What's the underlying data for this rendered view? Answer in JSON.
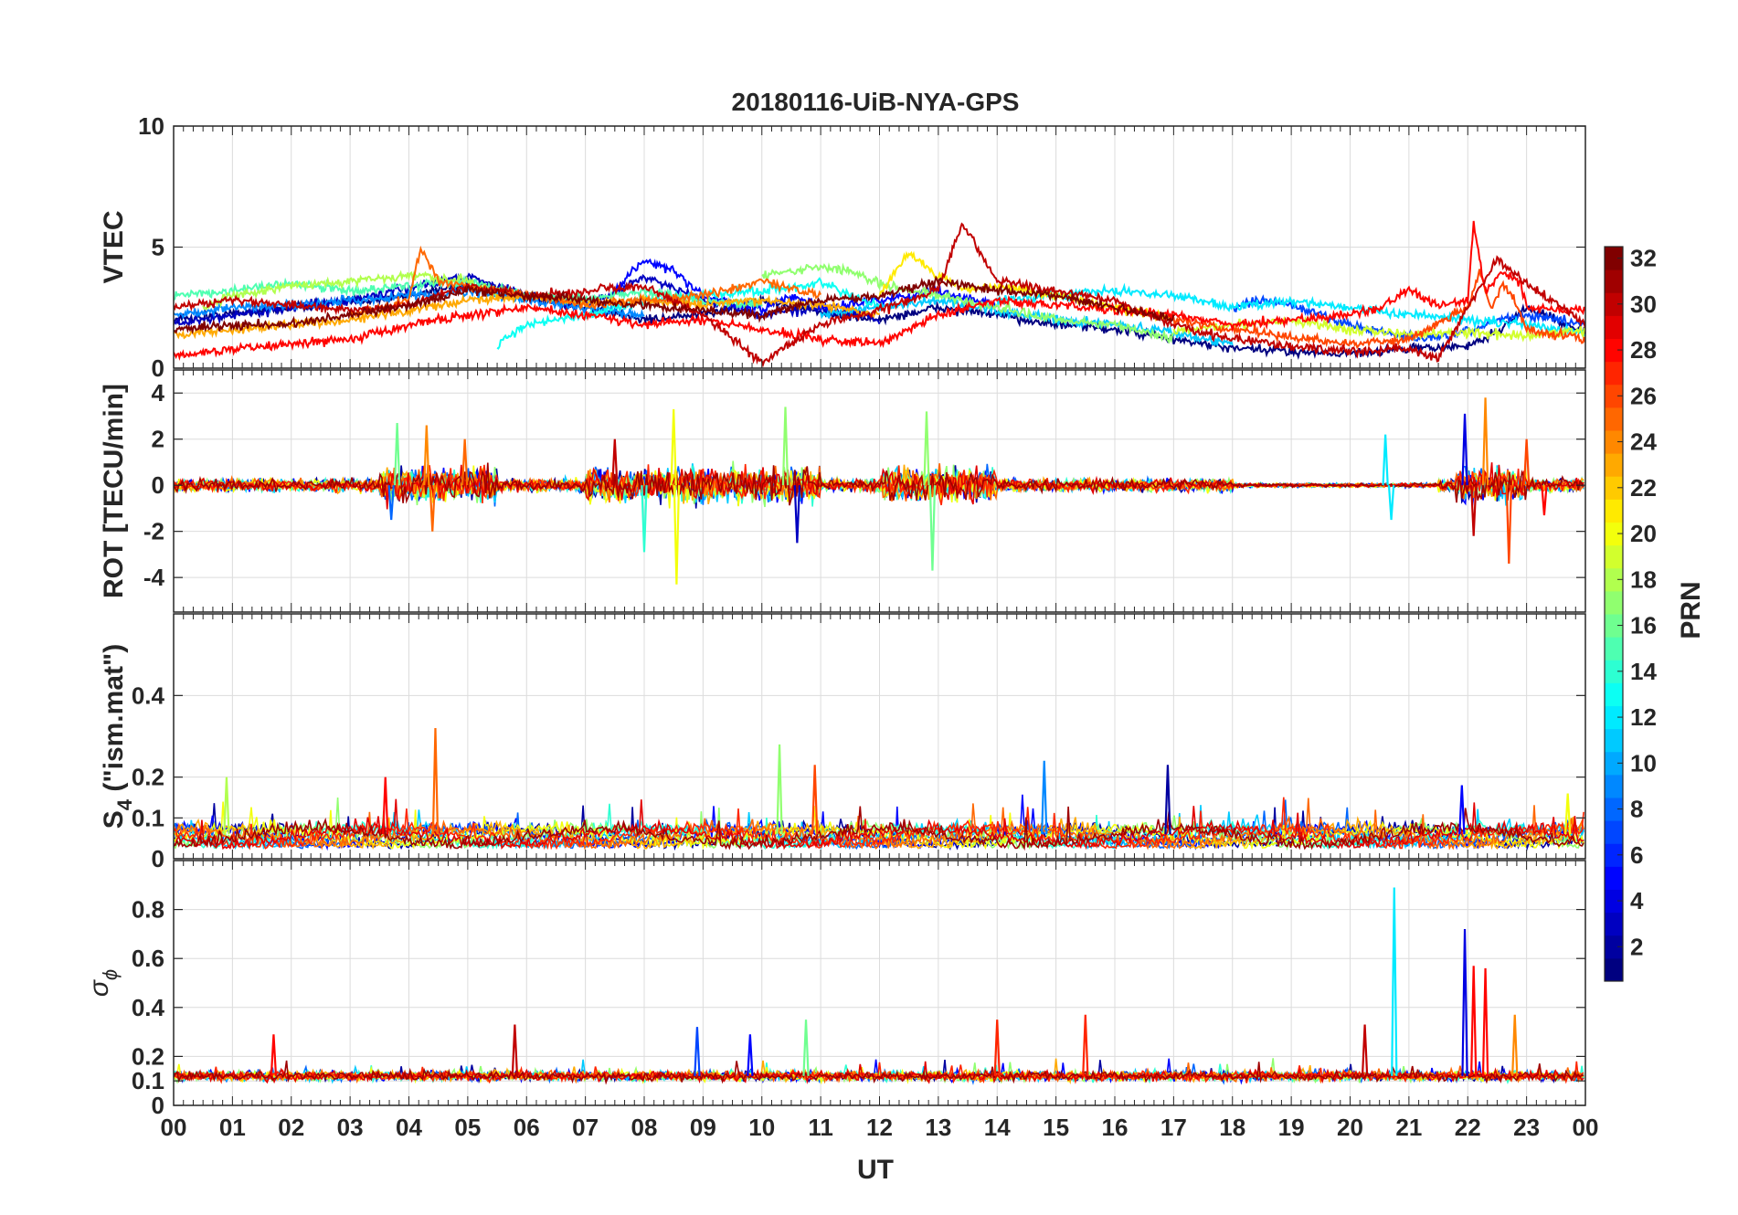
{
  "title": "20180116-UiB-NYA-GPS",
  "x_axis": {
    "label": "UT",
    "range": [
      0,
      24
    ],
    "tick_labels": [
      "00",
      "01",
      "02",
      "03",
      "04",
      "05",
      "06",
      "07",
      "08",
      "09",
      "10",
      "11",
      "12",
      "13",
      "14",
      "15",
      "16",
      "17",
      "18",
      "19",
      "20",
      "21",
      "22",
      "23",
      "00"
    ]
  },
  "colorbar": {
    "label": "PRN",
    "range": [
      1,
      32
    ],
    "tick_values": [
      2,
      4,
      6,
      8,
      10,
      12,
      14,
      16,
      18,
      20,
      22,
      24,
      26,
      28,
      30,
      32
    ],
    "colormap": "jet"
  },
  "panels": [
    {
      "id": "vtec",
      "ylabel": "VTEC",
      "ylabel_sub": "",
      "ylabel_rest": "",
      "ylim": [
        0,
        10
      ],
      "yticks": [
        0,
        5,
        10
      ]
    },
    {
      "id": "rot",
      "ylabel": "ROT [TECU/min]",
      "ylabel_sub": "",
      "ylabel_rest": "",
      "ylim": [
        -5.5,
        5
      ],
      "yticks": [
        -4,
        -2,
        0,
        2,
        4
      ]
    },
    {
      "id": "s4",
      "ylabel": "S",
      "ylabel_sub": "4",
      "ylabel_rest": " (\"ism.mat\")",
      "ylim": [
        0,
        0.6
      ],
      "yticks": [
        0,
        0.1,
        0.2,
        0.4
      ]
    },
    {
      "id": "sigma",
      "ylabel": "σ",
      "ylabel_sub": "ϕ",
      "ylabel_rest": "",
      "ylim": [
        0,
        1
      ],
      "yticks": [
        0,
        0.1,
        0.2,
        0.4,
        0.6,
        0.8
      ]
    }
  ],
  "chart_data": {
    "type": "line",
    "title": "20180116-UiB-NYA-GPS",
    "xlabel": "UT",
    "xlim": [
      0,
      24
    ],
    "series_note_removed": true,
    "color_by": "PRN",
    "panels": [
      {
        "id": "vtec",
        "ylabel": "VTEC",
        "ylim": [
          0,
          10
        ],
        "series": [
          {
            "prn": 1,
            "x": [
              0,
              2,
              4,
              5,
              6,
              7,
              8,
              9,
              10,
              11,
              12,
              13,
              14,
              15,
              16,
              17,
              18,
              19,
              20,
              21,
              22,
              22.5,
              23,
              24
            ],
            "y": [
              2.0,
              2.5,
              3.0,
              3.5,
              3.0,
              2.5,
              2.0,
              2.2,
              2.8,
              2.3,
              2.0,
              2.5,
              2.2,
              1.8,
              1.6,
              1.2,
              0.8,
              0.7,
              0.6,
              0.8,
              0.9,
              1.5,
              2.5,
              1.5
            ]
          },
          {
            "prn": 3,
            "x": [
              0,
              1,
              2,
              3,
              4,
              4.5,
              5,
              5.5,
              6,
              7,
              8,
              9,
              10,
              11,
              12
            ],
            "y": [
              1.8,
              2.2,
              2.5,
              2.8,
              3.3,
              3.6,
              3.8,
              3.4,
              3.0,
              2.5,
              3.8,
              2.8,
              2.2,
              2.5,
              2.0
            ]
          },
          {
            "prn": 5,
            "x": [
              7.5,
              8,
              8.5,
              9,
              9.5,
              10,
              10.5,
              11,
              12,
              13,
              14
            ],
            "y": [
              3.2,
              4.5,
              4.0,
              3.0,
              2.6,
              2.4,
              3.0,
              2.5,
              2.8,
              3.2,
              2.6
            ]
          },
          {
            "prn": 7,
            "x": [
              18,
              18.5,
              19,
              19.5,
              20,
              20.5,
              21,
              21.5,
              22,
              22.5,
              23,
              24
            ],
            "y": [
              2.5,
              2.8,
              2.6,
              2.2,
              1.8,
              1.5,
              1.3,
              1.2,
              1.5,
              2.0,
              2.2,
              1.8
            ]
          },
          {
            "prn": 9,
            "x": [
              0,
              1,
              2,
              3,
              4,
              5,
              6,
              7,
              8
            ],
            "y": [
              2.2,
              2.5,
              2.6,
              2.8,
              3.0,
              3.2,
              2.8,
              2.5,
              2.2
            ]
          },
          {
            "prn": 11,
            "x": [
              11,
              12,
              13,
              14,
              15,
              16,
              17,
              17.5,
              18
            ],
            "y": [
              2.2,
              2.5,
              2.8,
              2.4,
              2.0,
              1.8,
              1.5,
              1.2,
              1.0
            ]
          },
          {
            "prn": 13,
            "x": [
              5.5,
              6,
              7,
              8,
              9,
              10,
              11,
              12
            ],
            "y": [
              1.0,
              1.8,
              2.2,
              2.8,
              3.0,
              3.2,
              3.5,
              2.5
            ]
          },
          {
            "prn": 12,
            "x": [
              14,
              15,
              16,
              17,
              17.5,
              18,
              19,
              20,
              21,
              22,
              23,
              24
            ],
            "y": [
              2.8,
              3.0,
              3.2,
              3.0,
              2.8,
              2.5,
              2.8,
              2.5,
              2.2,
              2.0,
              1.8,
              1.5
            ]
          },
          {
            "prn": 15,
            "x": [
              0,
              1,
              2,
              3,
              4,
              5,
              6,
              7,
              8,
              9,
              10
            ],
            "y": [
              3.0,
              3.2,
              3.5,
              3.2,
              3.4,
              3.6,
              3.0,
              2.8,
              3.2,
              2.8,
              2.6
            ]
          },
          {
            "prn": 17,
            "x": [
              10,
              11,
              11.5,
              12,
              13,
              14,
              15,
              16,
              17
            ],
            "y": [
              3.8,
              4.2,
              4.0,
              3.5,
              3.0,
              2.5,
              2.0,
              1.8,
              1.2
            ]
          },
          {
            "prn": 18,
            "x": [
              0.5,
              1,
              2,
              3,
              4,
              5,
              5.5
            ],
            "y": [
              2.5,
              3.0,
              3.4,
              3.6,
              3.8,
              3.6,
              3.0
            ]
          },
          {
            "prn": 19,
            "x": [
              17,
              18,
              19,
              20,
              21,
              22,
              23,
              24
            ],
            "y": [
              1.5,
              1.8,
              2.0,
              1.6,
              1.4,
              1.5,
              1.3,
              1.6
            ]
          },
          {
            "prn": 21,
            "x": [
              12,
              12.5,
              13,
              13.5,
              14,
              15,
              16,
              17
            ],
            "y": [
              3.0,
              4.8,
              3.8,
              3.2,
              3.4,
              3.0,
              2.5,
              2.0
            ]
          },
          {
            "prn": 23,
            "x": [
              0,
              1,
              2,
              3,
              4,
              5,
              6,
              7,
              8,
              9,
              10,
              11,
              12
            ],
            "y": [
              1.4,
              1.6,
              1.8,
              2.0,
              2.4,
              2.8,
              3.0,
              2.7,
              2.8,
              2.6,
              2.8,
              2.6,
              2.2
            ]
          },
          {
            "prn": 25,
            "x": [
              3,
              4,
              4.2,
              4.5,
              5,
              6,
              7,
              8,
              9,
              10,
              11
            ],
            "y": [
              2.2,
              2.8,
              5.0,
              3.6,
              3.4,
              3.0,
              2.6,
              2.8,
              3.0,
              3.6,
              3.0
            ]
          },
          {
            "prn": 26,
            "x": [
              17,
              18,
              19,
              20,
              21,
              22,
              22.2,
              22.4,
              22.6,
              22.8,
              23,
              24
            ],
            "y": [
              2.0,
              1.6,
              1.3,
              1.0,
              1.2,
              2.5,
              4.0,
              2.5,
              3.5,
              2.8,
              1.6,
              1.2
            ]
          },
          {
            "prn": 28,
            "x": [
              0,
              1,
              2,
              3,
              4,
              5,
              6,
              7,
              8,
              9,
              10,
              11,
              12,
              13,
              14,
              15,
              16,
              17,
              18,
              19,
              20,
              20.5,
              21,
              21.5,
              22,
              22.1,
              22.3,
              22.6,
              22.9,
              23,
              24
            ],
            "y": [
              0.5,
              0.8,
              1.0,
              1.2,
              1.8,
              2.2,
              2.5,
              2.2,
              1.8,
              2.0,
              1.6,
              1.2,
              1.0,
              2.2,
              2.8,
              2.6,
              2.4,
              2.2,
              1.8,
              2.0,
              2.2,
              2.5,
              3.2,
              2.6,
              2.8,
              6.0,
              3.2,
              4.0,
              3.5,
              2.5,
              2.4
            ]
          },
          {
            "prn": 30,
            "x": [
              0,
              1,
              2,
              3,
              4,
              5,
              6,
              7,
              8,
              9,
              10,
              11,
              12,
              13,
              13.4,
              14,
              15,
              16,
              17,
              18,
              19,
              20,
              21,
              21.5,
              22,
              22.5,
              23,
              24
            ],
            "y": [
              2.5,
              2.8,
              2.6,
              2.4,
              2.6,
              3.4,
              3.0,
              3.2,
              3.4,
              2.2,
              0.2,
              1.8,
              2.4,
              3.2,
              6.0,
              3.6,
              3.2,
              2.8,
              1.8,
              1.2,
              0.9,
              0.7,
              0.8,
              0.4,
              2.5,
              4.5,
              3.5,
              1.8
            ]
          },
          {
            "prn": 32,
            "x": [
              0,
              1,
              2,
              3,
              4,
              5,
              6,
              7,
              8,
              9,
              10,
              11,
              12,
              13,
              14,
              15,
              16,
              17
            ],
            "y": [
              1.6,
              1.8,
              1.8,
              2.2,
              2.6,
              3.2,
              3.0,
              2.8,
              2.6,
              2.4,
              2.2,
              2.8,
              3.0,
              3.6,
              3.2,
              3.0,
              2.5,
              2.0
            ]
          }
        ]
      },
      {
        "id": "rot",
        "ylabel": "ROT [TECU/min]",
        "ylim": [
          -5.5,
          5
        ],
        "spikes": [
          {
            "prn": 16,
            "x": 3.8,
            "y": 2.7
          },
          {
            "prn": 8,
            "x": 3.7,
            "y": -1.5
          },
          {
            "prn": 24,
            "x": 4.3,
            "y": 2.6
          },
          {
            "prn": 25,
            "x": 4.4,
            "y": -2.0
          },
          {
            "prn": 25,
            "x": 4.95,
            "y": 2.0
          },
          {
            "prn": 30,
            "x": 7.5,
            "y": 2.0
          },
          {
            "prn": 14,
            "x": 8.0,
            "y": -2.9
          },
          {
            "prn": 20,
            "x": 8.5,
            "y": 3.3
          },
          {
            "prn": 20,
            "x": 8.55,
            "y": -4.3
          },
          {
            "prn": 17,
            "x": 10.4,
            "y": 3.4
          },
          {
            "prn": 3,
            "x": 10.6,
            "y": -2.5
          },
          {
            "prn": 17,
            "x": 12.8,
            "y": 3.2
          },
          {
            "prn": 16,
            "x": 12.9,
            "y": -3.7
          },
          {
            "prn": 12,
            "x": 20.6,
            "y": 2.2
          },
          {
            "prn": 12,
            "x": 20.7,
            "y": -1.5
          },
          {
            "prn": 4,
            "x": 21.95,
            "y": 3.1
          },
          {
            "prn": 24,
            "x": 22.3,
            "y": 3.8
          },
          {
            "prn": 30,
            "x": 22.1,
            "y": -2.2
          },
          {
            "prn": 26,
            "x": 22.7,
            "y": -3.4
          },
          {
            "prn": 26,
            "x": 23.0,
            "y": 2.0
          },
          {
            "prn": 28,
            "x": 23.3,
            "y": -1.3
          }
        ]
      },
      {
        "id": "s4",
        "ylabel": "S4 (\"ism.mat\")",
        "ylim": [
          0,
          0.6
        ],
        "spikes": [
          {
            "prn": 25,
            "x": 4.45,
            "y": 0.32
          },
          {
            "prn": 18,
            "x": 0.9,
            "y": 0.2
          },
          {
            "prn": 28,
            "x": 3.6,
            "y": 0.2
          },
          {
            "prn": 17,
            "x": 10.3,
            "y": 0.28
          },
          {
            "prn": 26,
            "x": 10.9,
            "y": 0.23
          },
          {
            "prn": 9,
            "x": 14.8,
            "y": 0.24
          },
          {
            "prn": 2,
            "x": 16.9,
            "y": 0.23
          },
          {
            "prn": 5,
            "x": 21.9,
            "y": 0.18
          },
          {
            "prn": 20,
            "x": 23.7,
            "y": 0.16
          }
        ]
      },
      {
        "id": "sigma",
        "ylabel": "σϕ",
        "ylim": [
          0,
          1
        ],
        "spikes": [
          {
            "prn": 12,
            "x": 20.75,
            "y": 0.89
          },
          {
            "prn": 4,
            "x": 21.95,
            "y": 0.72
          },
          {
            "prn": 28,
            "x": 22.1,
            "y": 0.57
          },
          {
            "prn": 28,
            "x": 22.3,
            "y": 0.56
          },
          {
            "prn": 30,
            "x": 20.25,
            "y": 0.33
          },
          {
            "prn": 30,
            "x": 5.8,
            "y": 0.33
          },
          {
            "prn": 27,
            "x": 14.0,
            "y": 0.35
          },
          {
            "prn": 27,
            "x": 15.5,
            "y": 0.37
          },
          {
            "prn": 28,
            "x": 1.7,
            "y": 0.29
          },
          {
            "prn": 7,
            "x": 8.9,
            "y": 0.32
          },
          {
            "prn": 5,
            "x": 9.8,
            "y": 0.29
          },
          {
            "prn": 16,
            "x": 10.75,
            "y": 0.35
          },
          {
            "prn": 24,
            "x": 22.8,
            "y": 0.37
          }
        ]
      }
    ]
  }
}
